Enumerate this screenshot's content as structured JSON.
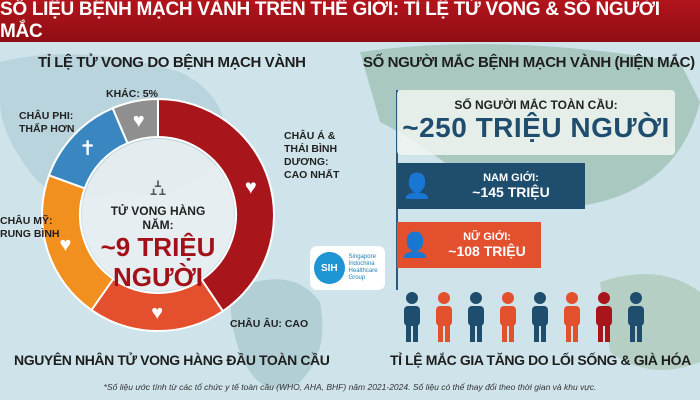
{
  "title": "SỐ LIỆU BỆNH MẠCH VÀNH TRÊN THẾ GIỚI: TỈ LỆ TỬ VONG & SỐ NGƯỜI MẮC",
  "left": {
    "heading": "TỈ LỆ TỬ VONG DO BỆNH MẠCH VÀNH",
    "segments": [
      {
        "label": "CHÂU Á & THÁI BÌNH DƯƠNG: CAO NHẤT",
        "color": "#a8161c",
        "icon": "broken-heart-icon"
      },
      {
        "label": "CHÂU ÂU: CAO",
        "color": "#e4502e",
        "icon": "broken-heart-icon"
      },
      {
        "label": "CHÂU MỸ: TRUNG BÌNH",
        "color": "#f2901f",
        "icon": "broken-heart-icon"
      },
      {
        "label": "CHÂU PHI: THẤP HƠN",
        "color": "#3a86c0",
        "icon": "tombstone-icon"
      },
      {
        "label": "KHÁC: 5%",
        "color": "#8f8f8f",
        "icon": "broken-heart-icon"
      }
    ],
    "labels": {
      "asia1": "CHÂU Á &",
      "asia2": "THÁI BÌNH",
      "asia3": "DƯƠNG:",
      "asia4": "CAO NHẤT",
      "europe": "CHÂU ÂU: CAO",
      "america1": "CHÂU MỸ:",
      "america2": "RUNG BÌNH",
      "africa1": "CHÂU PHI:",
      "africa2": "THẤP HƠN",
      "other": "KHÁC: 5%"
    },
    "center_label": "TỬ VONG HÀNG NĂM:",
    "center_value1": "~9 TRIỆU",
    "center_value2": "NGƯỜI",
    "caption": "NGUYÊN NHÂN TỬ VONG HÀNG ĐẦU TOÀN CẦU"
  },
  "right": {
    "heading": "SỐ NGƯỜI MẮC BỆNH MẠCH VÀNH (HIỆN MẮC)",
    "total_label": "SỐ NGƯỜI MẮC TOÀN CẦU:",
    "total_value": "~250 TRIỆU NGƯỜI",
    "male_label": "NAM GIỚI:",
    "male_value": "~145 TRIỆU",
    "male_color": "#1f4d6e",
    "female_label": "NỮ GIỚI:",
    "female_value": "~108 TRIỆU",
    "female_color": "#e2502e",
    "caption": "TỈ LỆ MẮC GIA TĂNG DO LỐI SỐNG & GIÀ HÓA"
  },
  "logo": {
    "text": "Singapore Indochina Healthcare Group",
    "mark": "SIH"
  },
  "footnote": "*Số liệu ước tính từ các tổ chức y tế toàn cầu (WHO, AHA, BHF) năm 2021-2024. Số liệu có thể thay đổi theo thời gian và khu vực."
}
